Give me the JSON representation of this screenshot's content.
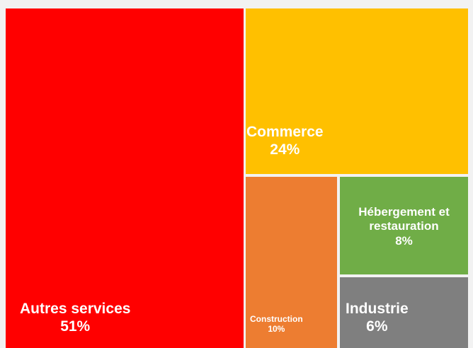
{
  "chart_data": {
    "type": "treemap",
    "title": "",
    "nodes": [
      {
        "name": "Autres services",
        "label": "51%",
        "value": 51,
        "color": "#ff0000"
      },
      {
        "name": "Commerce",
        "label": "24%",
        "value": 24,
        "color": "#ffc000"
      },
      {
        "name": "Construction",
        "label": "10%",
        "value": 10,
        "color": "#ed7d31"
      },
      {
        "name": "Hébergement et restauration",
        "label": "8%",
        "value": 8,
        "color": "#70ad47"
      },
      {
        "name": "Industrie",
        "label": "6%",
        "value": 6,
        "color": "#7f7f7f"
      }
    ]
  }
}
